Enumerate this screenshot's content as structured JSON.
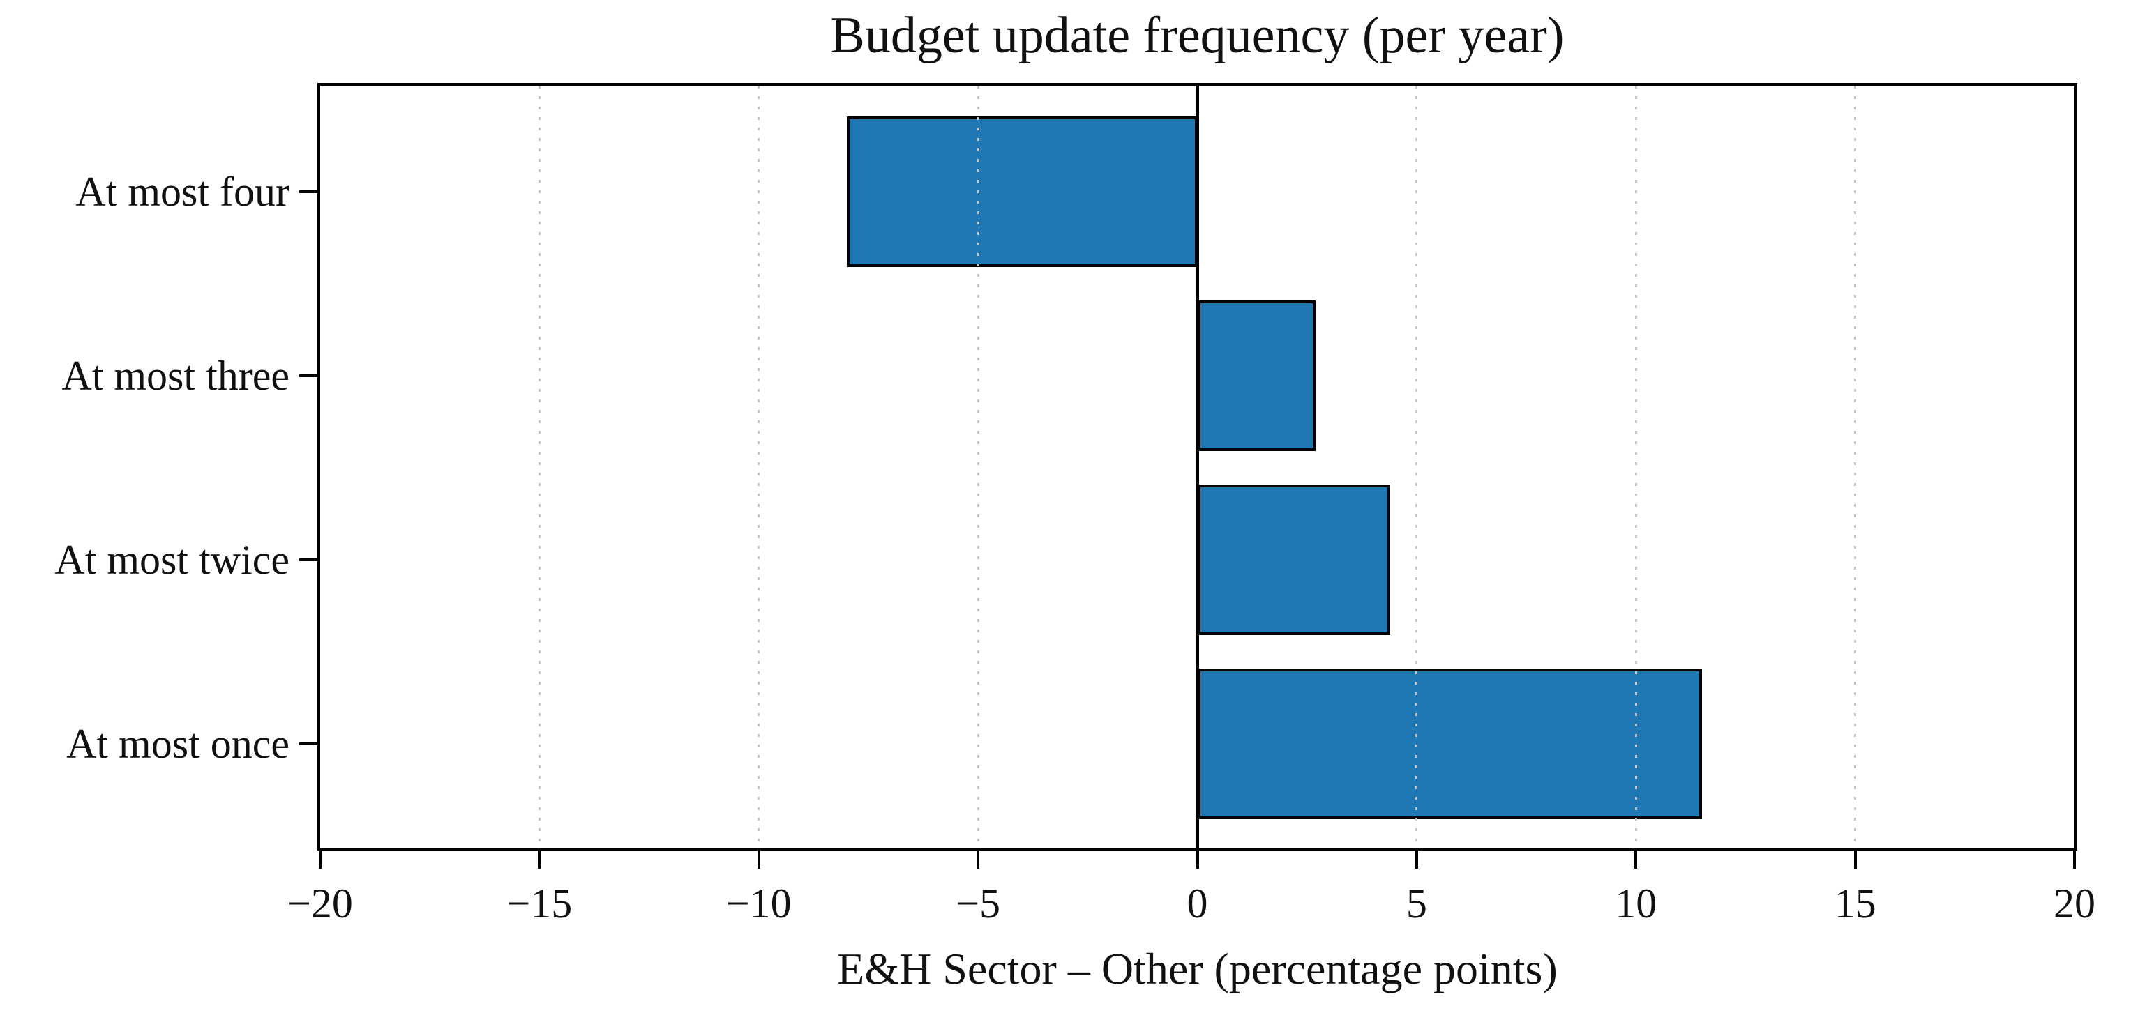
{
  "figure": {
    "title": "Budget update frequency (per year)",
    "x_axis_label": "E&H Sector – Other (percentage points)"
  },
  "chart_data": {
    "type": "bar",
    "orientation": "horizontal",
    "title": "Budget update frequency (per year)",
    "xlabel": "E&H Sector – Other (percentage points)",
    "ylabel": "",
    "categories": [
      "At most four",
      "At most three",
      "At most twice",
      "At most once"
    ],
    "values": [
      -8.0,
      2.7,
      4.4,
      11.5
    ],
    "xlim": [
      -20,
      20
    ],
    "xticks": [
      -20,
      -15,
      -10,
      -5,
      0,
      5,
      10,
      15,
      20
    ],
    "xtick_labels": [
      "−20",
      "−15",
      "−10",
      "−5",
      "0",
      "5",
      "10",
      "15",
      "20"
    ],
    "grid": "vertical-dotted",
    "grid_over_bars": true,
    "zero_line": true,
    "legend": "none",
    "colors": {
      "bar_fill": "#1f77b4",
      "bar_edge": "#000000",
      "gridline": "#c6c6c6",
      "axis": "#000000",
      "text": "#111111",
      "background": "#ffffff"
    }
  }
}
